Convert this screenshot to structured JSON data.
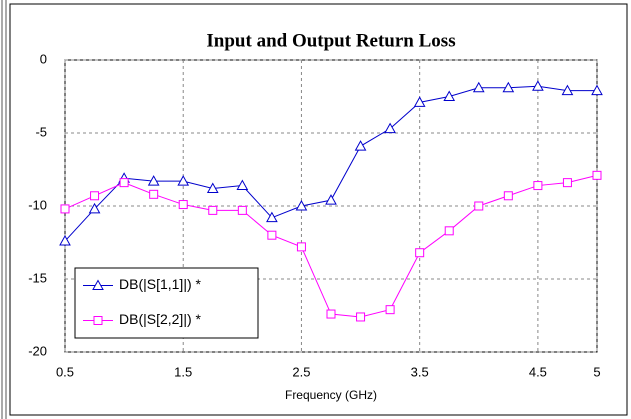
{
  "chart_data": {
    "type": "line",
    "title": "Input and Output Return Loss",
    "xlabel": "Frequency (GHz)",
    "x": [
      0.5,
      0.75,
      1.0,
      1.25,
      1.5,
      1.75,
      2.0,
      2.25,
      2.5,
      2.75,
      3.0,
      3.25,
      3.5,
      3.75,
      4.0,
      4.25,
      4.5,
      4.75,
      5.0
    ],
    "series": [
      {
        "name": "DB(|S[1,1]|) *",
        "color": "#0000cc",
        "marker": "triangle",
        "values": [
          -12.4,
          -10.2,
          -8.1,
          -8.3,
          -8.3,
          -8.8,
          -8.6,
          -10.8,
          -10.0,
          -9.6,
          -5.9,
          -4.7,
          -2.9,
          -2.5,
          -1.9,
          -1.9,
          -1.8,
          -2.1,
          -2.1
        ]
      },
      {
        "name": "DB(|S[2,2]|) *",
        "color": "#ff00ff",
        "marker": "square",
        "values": [
          -10.2,
          -9.3,
          -8.4,
          -9.2,
          -9.9,
          -10.3,
          -10.3,
          -12.0,
          -12.8,
          -17.4,
          -17.6,
          -17.1,
          -13.2,
          -11.7,
          -10.0,
          -9.3,
          -8.6,
          -8.4,
          -7.9
        ]
      }
    ],
    "xlim": [
      0.5,
      5
    ],
    "xticks": [
      0.5,
      1.5,
      2.5,
      3.5,
      4.5,
      5
    ],
    "ylim": [
      -20,
      0
    ],
    "yticks": [
      0,
      -5,
      -10,
      -15,
      -20
    ],
    "grid": true,
    "legend": "lower left"
  }
}
